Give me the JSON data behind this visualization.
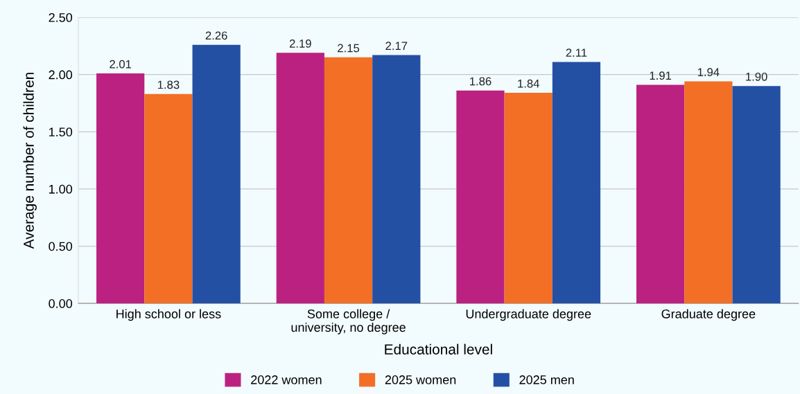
{
  "chart_data": {
    "type": "bar",
    "xlabel": "Educational level",
    "ylabel": "Average number of children",
    "categories": [
      "High school or less",
      "Some college /\nuniversity, no degree",
      "Undergraduate degree",
      "Graduate degree"
    ],
    "series": [
      {
        "name": "2022 women",
        "color": "#bb2180",
        "values": [
          2.01,
          2.19,
          1.86,
          1.91
        ],
        "value_labels": [
          "2.01",
          "2.19",
          "1.86",
          "1.91"
        ]
      },
      {
        "name": "2025 women",
        "color": "#f26f25",
        "values": [
          1.83,
          2.15,
          1.84,
          1.94
        ],
        "value_labels": [
          "1.83",
          "2.15",
          "1.84",
          "1.94"
        ]
      },
      {
        "name": "2025 men",
        "color": "#2450a4",
        "values": [
          2.26,
          2.17,
          2.11,
          1.9
        ],
        "value_labels": [
          "2.26",
          "2.17",
          "2.11",
          "1.90"
        ]
      }
    ],
    "ylim": [
      0,
      2.5
    ],
    "yticks": [
      {
        "value": 0,
        "label": "0.00"
      },
      {
        "value": 0.5,
        "label": "0.50"
      },
      {
        "value": 1,
        "label": "1.00"
      },
      {
        "value": 1.5,
        "label": "1.50"
      },
      {
        "value": 2,
        "label": "2.00"
      },
      {
        "value": 2.5,
        "label": "2.50"
      }
    ],
    "grid": "y",
    "legend": "bottom"
  }
}
